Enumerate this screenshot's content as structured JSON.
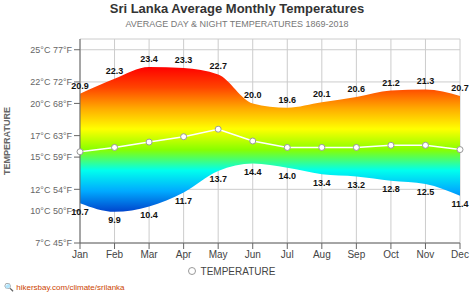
{
  "chart_data": {
    "type": "range_area",
    "title": "Sri Lanka Average Monthly Temperatures",
    "subtitle": "AVERAGE DAY & NIGHT TEMPERATURES 1869-2018",
    "y_label": "TEMPERATURE",
    "annotations": [
      "🔍 hikersbay.com/climate/srilanka"
    ],
    "categories": [
      "Jan",
      "Feb",
      "Mar",
      "Apr",
      "May",
      "Jun",
      "Jul",
      "Aug",
      "Sep",
      "Oct",
      "Nov",
      "Dec"
    ],
    "series": [
      {
        "type": "area_upper",
        "colors": [
          "#0044cc",
          "#00aaff",
          "#00ffee",
          "#88ff00",
          "#ffff00",
          "#ffaa00",
          "#ff4400",
          "#ff0000"
        ],
        "data_labels": true,
        "values": [
          20.9,
          22.3,
          23.4,
          23.3,
          22.7,
          20.0,
          19.6,
          20.1,
          20.6,
          21.2,
          21.3,
          20.7
        ],
        "value_labels": [
          "20.9",
          "22.3",
          "23.4",
          "23.3",
          "22.7",
          "20.0",
          "19.6",
          "20.1",
          "20.6",
          "21.2",
          "21.3",
          "20.7"
        ]
      },
      {
        "type": "area_lower",
        "data_labels": true,
        "values": [
          10.7,
          9.9,
          10.4,
          11.7,
          13.7,
          14.4,
          14.0,
          13.4,
          13.2,
          12.8,
          12.5,
          11.4
        ],
        "value_labels": [
          "10.7",
          "9.9",
          "10.4",
          "11.7",
          "13.7",
          "14.4",
          "14.0",
          "13.4",
          "13.2",
          "12.8",
          "12.5",
          "11.4"
        ]
      },
      {
        "name": "TEMPERATURE",
        "type": "line",
        "color": "#ffffff",
        "marker": "circle",
        "values": [
          15.5,
          15.9,
          16.4,
          16.9,
          17.6,
          16.5,
          15.9,
          15.9,
          15.9,
          16.1,
          16.1,
          15.7
        ]
      }
    ],
    "ylim": [
      7,
      26
    ],
    "yticks": [
      {
        "value": 7,
        "label": "7°C 45°F"
      },
      {
        "value": 10,
        "label": "10°C 50°F"
      },
      {
        "value": 12,
        "label": "12°C 54°F"
      },
      {
        "value": 15,
        "label": "15°C 59°F"
      },
      {
        "value": 17,
        "label": "17°C 63°F"
      },
      {
        "value": 20,
        "label": "20°C 68°F"
      },
      {
        "value": 22,
        "label": "22°C 72°F"
      },
      {
        "value": 25,
        "label": "25°C 77°F"
      }
    ],
    "grid": true,
    "legend": "bottom"
  }
}
